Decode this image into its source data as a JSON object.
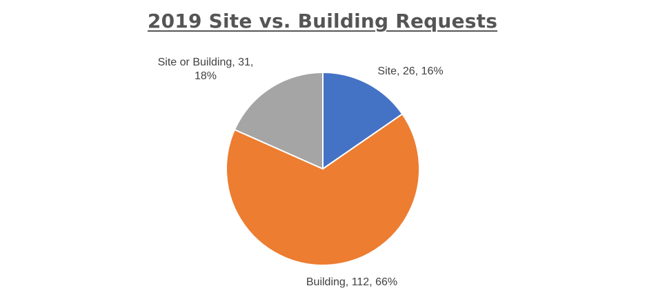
{
  "chart_data": {
    "type": "pie",
    "title": "2019 Site vs. Building Requests",
    "slices": [
      {
        "label": "Site",
        "value": 26,
        "percent": "16%",
        "color": "#4472C4",
        "data_label": [
          "Site, 26, 16%"
        ]
      },
      {
        "label": "Building",
        "value": 112,
        "percent": "66%",
        "color": "#ED7D31",
        "data_label": [
          "Building, 112, 66%"
        ]
      },
      {
        "label": "Site or Building",
        "value": 31,
        "percent": "18%",
        "color": "#A5A5A5",
        "data_label": [
          "Site or Building, 31,",
          "18%"
        ]
      }
    ],
    "legend": "none"
  }
}
